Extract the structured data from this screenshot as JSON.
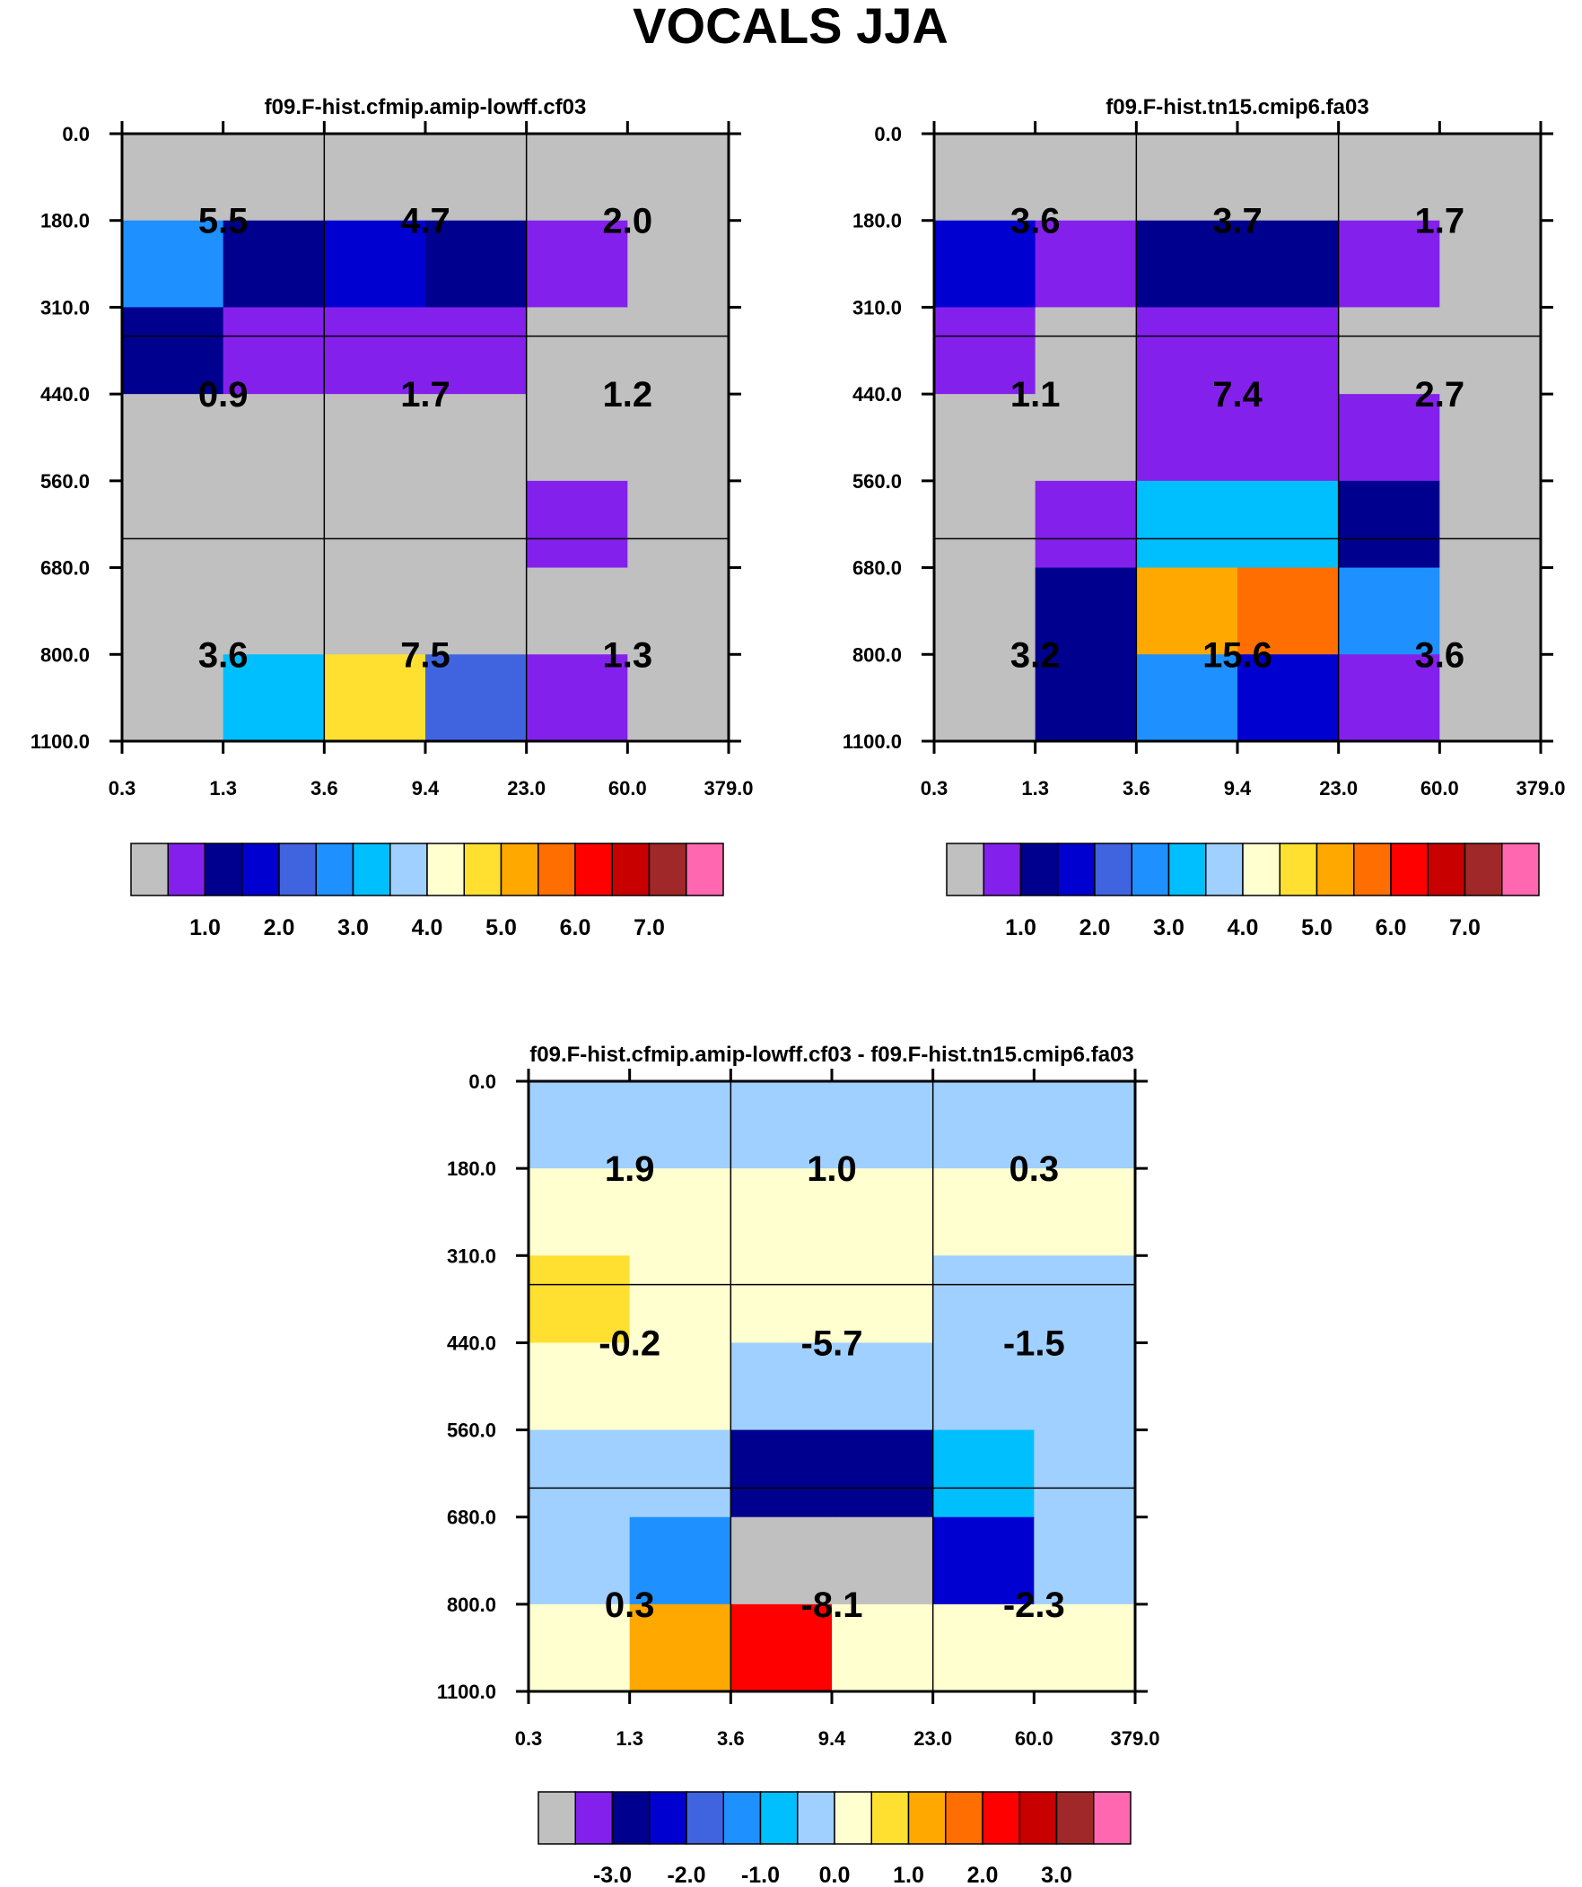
{
  "figure": {
    "title": "VOCALS JJA"
  },
  "palette": [
    "#c0c0c0",
    "#8420ec",
    "#00008e",
    "#0000d0",
    "#4064e0",
    "#1e90ff",
    "#00bfff",
    "#a0d0ff",
    "#ffffd0",
    "#ffe030",
    "#ffa800",
    "#ff6e00",
    "#ff0000",
    "#c80000",
    "#a02828",
    "#ff68b0"
  ],
  "chart_data": [
    {
      "type": "heatmap",
      "title": "f09.F-hist.cfmip.amip-lowff.cf03",
      "x_ticks": [
        "0.3",
        "1.3",
        "3.6",
        "9.4",
        "23.0",
        "60.0",
        "379.0"
      ],
      "y_ticks": [
        "0.0",
        "180.0",
        "310.0",
        "440.0",
        "560.0",
        "680.0",
        "800.0",
        "1100.0"
      ],
      "cells": [
        [
          0,
          0,
          0,
          0,
          0,
          0
        ],
        [
          5,
          2,
          3,
          2,
          1,
          0
        ],
        [
          2,
          1,
          1,
          1,
          0,
          0
        ],
        [
          0,
          0,
          0,
          0,
          0,
          0
        ],
        [
          0,
          0,
          0,
          0,
          1,
          0
        ],
        [
          0,
          0,
          0,
          0,
          0,
          0
        ],
        [
          0,
          6,
          9,
          4,
          1,
          0
        ]
      ],
      "block_values": [
        [
          "5.5",
          "4.7",
          "2.0"
        ],
        [
          "0.9",
          "1.7",
          "1.2"
        ],
        [
          "3.6",
          "7.5",
          "1.3"
        ]
      ],
      "colorbar_labels": [
        "1.0",
        "2.0",
        "3.0",
        "4.0",
        "5.0",
        "6.0",
        "7.0"
      ]
    },
    {
      "type": "heatmap",
      "title": "f09.F-hist.tn15.cmip6.fa03",
      "x_ticks": [
        "0.3",
        "1.3",
        "3.6",
        "9.4",
        "23.0",
        "60.0",
        "379.0"
      ],
      "y_ticks": [
        "0.0",
        "180.0",
        "310.0",
        "440.0",
        "560.0",
        "680.0",
        "800.0",
        "1100.0"
      ],
      "cells": [
        [
          0,
          0,
          0,
          0,
          0,
          0
        ],
        [
          3,
          1,
          2,
          2,
          1,
          0
        ],
        [
          1,
          0,
          1,
          1,
          0,
          0
        ],
        [
          0,
          0,
          1,
          1,
          1,
          0
        ],
        [
          0,
          1,
          6,
          6,
          2,
          0
        ],
        [
          0,
          2,
          10,
          11,
          5,
          0
        ],
        [
          0,
          2,
          5,
          3,
          1,
          0
        ]
      ],
      "block_values": [
        [
          "3.6",
          "3.7",
          "1.7"
        ],
        [
          "1.1",
          "7.4",
          "2.7"
        ],
        [
          "3.2",
          "15.6",
          "3.6"
        ]
      ],
      "colorbar_labels": [
        "1.0",
        "2.0",
        "3.0",
        "4.0",
        "5.0",
        "6.0",
        "7.0"
      ]
    },
    {
      "type": "heatmap",
      "title": "f09.F-hist.cfmip.amip-lowff.cf03 - f09.F-hist.tn15.cmip6.fa03",
      "x_ticks": [
        "0.3",
        "1.3",
        "3.6",
        "9.4",
        "23.0",
        "60.0",
        "379.0"
      ],
      "y_ticks": [
        "0.0",
        "180.0",
        "310.0",
        "440.0",
        "560.0",
        "680.0",
        "800.0",
        "1100.0"
      ],
      "cells": [
        [
          7,
          7,
          7,
          7,
          7,
          7
        ],
        [
          8,
          8,
          8,
          8,
          8,
          8
        ],
        [
          9,
          8,
          8,
          8,
          7,
          7
        ],
        [
          8,
          8,
          7,
          7,
          7,
          7
        ],
        [
          7,
          7,
          2,
          2,
          6,
          7
        ],
        [
          7,
          5,
          0,
          0,
          3,
          7
        ],
        [
          8,
          10,
          12,
          8,
          8,
          8
        ]
      ],
      "block_values": [
        [
          "1.9",
          "1.0",
          "0.3"
        ],
        [
          "-0.2",
          "-5.7",
          "-1.5"
        ],
        [
          "0.3",
          "-8.1",
          "-2.3"
        ]
      ],
      "colorbar_labels": [
        "-3.0",
        "-2.0",
        "-1.0",
        "0.0",
        "1.0",
        "2.0",
        "3.0"
      ]
    }
  ]
}
